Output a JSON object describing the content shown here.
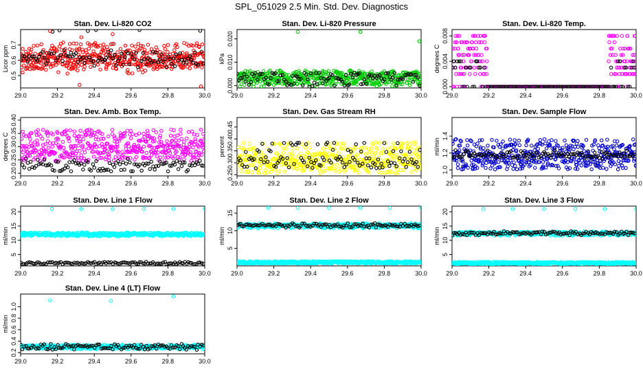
{
  "title": "SPL_051029  2.5 Min. Std. Dev. Diagnostics",
  "chart_data": [
    {
      "type": "scatter",
      "title": "Stan. Dev. Li-820 CO2",
      "xlabel": "",
      "ylabel": "Licor ppm",
      "xlim": [
        29.0,
        30.0
      ],
      "ylim": [
        0.42,
        0.8
      ],
      "xticks": [
        "29.0",
        "29.2",
        "29.4",
        "29.6",
        "29.8",
        "30.0"
      ],
      "yticks": [
        "0.5",
        "0.6",
        "0.7"
      ],
      "color": "#ff0000",
      "series": [
        {
          "color": "#ff0000",
          "values": [
            0.58,
            0.62,
            0.66,
            0.55,
            0.7,
            0.6,
            0.63,
            0.52,
            0.67,
            0.59,
            0.61,
            0.57,
            0.64,
            0.68,
            0.56,
            0.62,
            0.6,
            0.65,
            0.54,
            0.71,
            0.59,
            0.63,
            0.58,
            0.66,
            0.61,
            0.57,
            0.69,
            0.55,
            0.62,
            0.6,
            0.64,
            0.58,
            0.67,
            0.61,
            0.56,
            0.63,
            0.59,
            0.7,
            0.57,
            0.62
          ]
        },
        {
          "color": "#000000",
          "values": [
            0.6,
            0.64,
            0.57,
            0.79,
            0.62,
            0.59,
            0.66,
            0.58,
            0.63,
            0.61,
            0.65,
            0.56,
            0.62,
            0.6
          ]
        }
      ],
      "outliers": [
        {
          "x": 29.16,
          "y": 0.79
        },
        {
          "x": 29.33,
          "y": 0.75
        },
        {
          "x": 29.5,
          "y": 0.77
        },
        {
          "x": 29.98,
          "y": 0.43
        },
        {
          "x": 29.32,
          "y": 0.44
        }
      ]
    },
    {
      "type": "scatter",
      "title": "Stan. Dev. Li-820 Pressure",
      "xlabel": "",
      "ylabel": "kPa",
      "xlim": [
        29.0,
        30.0
      ],
      "ylim": [
        -0.001,
        0.024
      ],
      "xticks": [
        "29.0",
        "29.2",
        "29.4",
        "29.6",
        "29.8",
        "30.0"
      ],
      "yticks": [
        "0.000",
        "0.010",
        "0.020"
      ],
      "color": "#00cc00",
      "series": [
        {
          "color": "#00cc00",
          "values": [
            0.001,
            0.003,
            0.005,
            0.002,
            0.004,
            0.006,
            0.001,
            0.003,
            0.005,
            0.002,
            0.004,
            0.0,
            0.006,
            0.003,
            0.001,
            0.005
          ]
        },
        {
          "color": "#000000",
          "values": [
            0.001,
            0.003,
            0.005,
            0.002,
            0.004,
            0.0,
            0.003,
            0.005
          ]
        }
      ],
      "outliers": [
        {
          "x": 29.33,
          "y": 0.023
        },
        {
          "x": 29.67,
          "y": 0.023
        },
        {
          "x": 29.99,
          "y": 0.019
        }
      ]
    },
    {
      "type": "scatter",
      "title": "Stan. Dev. Li-820 Temp.",
      "xlabel": "",
      "ylabel": "degrees C",
      "xlim": [
        29.0,
        30.0
      ],
      "ylim": [
        -0.0002,
        0.009
      ],
      "xticks": [
        "29.0",
        "29.2",
        "29.4",
        "29.6",
        "29.8",
        "30.0"
      ],
      "yticks": [
        "0.000",
        "0.004",
        "0.008"
      ],
      "color": "#ff00ff",
      "series": [
        {
          "color": "#ff00ff",
          "values": [
            0.0,
            0.002,
            0.003,
            0.004,
            0.005,
            0.006,
            0.007,
            0.008
          ]
        },
        {
          "color": "#000000",
          "values": [
            0.0,
            0.003,
            0.004
          ]
        }
      ]
    },
    {
      "type": "scatter",
      "title": "Stan. Dev. Amb. Box Temp.",
      "xlabel": "",
      "ylabel": "degrees C",
      "xlim": [
        29.0,
        30.0
      ],
      "ylim": [
        0.19,
        0.41
      ],
      "xticks": [
        "29.0",
        "29.2",
        "29.4",
        "29.6",
        "29.8",
        "30.0"
      ],
      "yticks": [
        "0.20",
        "0.25",
        "0.30",
        "0.35",
        "0.40"
      ],
      "color": "#ff00ff",
      "series": [
        {
          "color": "#ff00ff",
          "values": [
            0.26,
            0.3,
            0.34,
            0.28,
            0.32,
            0.36,
            0.27,
            0.31,
            0.29,
            0.33,
            0.25,
            0.35,
            0.3,
            0.28
          ]
        },
        {
          "color": "#000000",
          "values": [
            0.21,
            0.23,
            0.24,
            0.22,
            0.25,
            0.23,
            0.21,
            0.24
          ]
        }
      ]
    },
    {
      "type": "scatter",
      "title": "Stan. Dev. Gas Stream RH",
      "xlabel": "",
      "ylabel": "percent",
      "xlim": [
        29.0,
        30.0
      ],
      "ylim": [
        0.245,
        0.49
      ],
      "xticks": [
        "29.0",
        "29.2",
        "29.4",
        "29.6",
        "29.8",
        "30.0"
      ],
      "yticks": [
        "0.25",
        "0.30",
        "0.35",
        "0.40",
        "0.45"
      ],
      "color": "#ffff00",
      "series": [
        {
          "color": "#ffff00",
          "values": [
            0.28,
            0.31,
            0.34,
            0.29,
            0.32,
            0.36,
            0.27,
            0.3,
            0.33,
            0.38,
            0.26,
            0.31,
            0.29
          ]
        },
        {
          "color": "#000000",
          "values": [
            0.28,
            0.3,
            0.32,
            0.35,
            0.29,
            0.31,
            0.38
          ]
        }
      ]
    },
    {
      "type": "scatter",
      "title": "Stan. Dev. Sample Flow",
      "xlabel": "",
      "ylabel": "ml/min",
      "xlim": [
        29.0,
        30.0
      ],
      "ylim": [
        0.93,
        1.62
      ],
      "xticks": [
        "29.0",
        "29.2",
        "29.4",
        "29.6",
        "29.8",
        "30.0"
      ],
      "yticks": [
        "1.0",
        "1.2",
        "1.4"
      ],
      "color": "#0000cc",
      "series": [
        {
          "color": "#0000cc",
          "values": [
            1.1,
            1.15,
            1.2,
            1.25,
            1.05,
            1.3,
            1.18,
            1.12,
            1.22,
            1.08,
            1.28,
            1.16,
            1.35,
            1.02
          ]
        },
        {
          "color": "#000000",
          "values": [
            1.15,
            1.18,
            1.2,
            1.22,
            1.17
          ]
        }
      ]
    },
    {
      "type": "scatter",
      "title": "Stan. Dev. Line 1 Flow",
      "xlabel": "",
      "ylabel": "ml/min",
      "xlim": [
        29.0,
        30.0
      ],
      "ylim": [
        1,
        22
      ],
      "xticks": [
        "29.0",
        "29.2",
        "29.4",
        "29.6",
        "29.8",
        "30.0"
      ],
      "yticks": [
        "5",
        "10",
        "15",
        "20"
      ],
      "color": "#00ffff",
      "series": [
        {
          "color": "#00ffff",
          "values": [
            12,
            12.3,
            11.8,
            12.1,
            12.4,
            11.9
          ]
        },
        {
          "color": "#000000",
          "values": [
            2,
            2,
            2
          ]
        }
      ],
      "outliers": [
        {
          "x": 29.17,
          "y": 21
        },
        {
          "x": 29.33,
          "y": 21
        },
        {
          "x": 29.5,
          "y": 21
        },
        {
          "x": 29.67,
          "y": 21
        },
        {
          "x": 29.83,
          "y": 21
        },
        {
          "x": 30.0,
          "y": 21
        }
      ]
    },
    {
      "type": "scatter",
      "title": "Stan. Dev. Line 2 Flow",
      "xlabel": "",
      "ylabel": "ml/min",
      "xlim": [
        29.0,
        30.0
      ],
      "ylim": [
        0,
        17
      ],
      "xticks": [
        "29.0",
        "29.2",
        "29.4",
        "29.6",
        "29.8",
        "30.0"
      ],
      "yticks": [
        "5",
        "10",
        "15"
      ],
      "color": "#00ffff",
      "series": [
        {
          "color": "#00ffff",
          "values": [
            11,
            11.3,
            11.6,
            11.8,
            11.5
          ]
        },
        {
          "color": "#000000",
          "values": [
            11.2,
            11.5,
            11.8
          ]
        },
        {
          "color": "#00ffff",
          "values": [
            1,
            1,
            1
          ]
        }
      ],
      "outliers": [
        {
          "x": 29.17,
          "y": 16.5
        },
        {
          "x": 29.33,
          "y": 16.5
        },
        {
          "x": 29.5,
          "y": 16.5
        },
        {
          "x": 29.67,
          "y": 16.5
        },
        {
          "x": 29.83,
          "y": 16.5
        },
        {
          "x": 30.0,
          "y": 16.5
        }
      ]
    },
    {
      "type": "scatter",
      "title": "Stan. Dev. Line 3 Flow",
      "xlabel": "",
      "ylabel": "ml/min",
      "xlim": [
        29.0,
        30.0
      ],
      "ylim": [
        1,
        22
      ],
      "xticks": [
        "29.0",
        "29.2",
        "29.4",
        "29.6",
        "29.8",
        "30.0"
      ],
      "yticks": [
        "5",
        "10",
        "15",
        "20"
      ],
      "color": "#00ffff",
      "series": [
        {
          "color": "#00ffff",
          "values": [
            12,
            12.4,
            12.7,
            12.5
          ]
        },
        {
          "color": "#000000",
          "values": [
            12.2,
            12.6,
            12.8
          ]
        },
        {
          "color": "#00ffff",
          "values": [
            2,
            2,
            2
          ]
        }
      ],
      "outliers": [
        {
          "x": 29.17,
          "y": 21
        },
        {
          "x": 29.33,
          "y": 21
        },
        {
          "x": 29.5,
          "y": 21
        },
        {
          "x": 29.67,
          "y": 21
        },
        {
          "x": 29.83,
          "y": 21
        },
        {
          "x": 30.0,
          "y": 21
        }
      ]
    },
    {
      "type": "scatter",
      "title": "Stan. Dev. Line 4 (LT) Flow",
      "xlabel": "",
      "ylabel": "ml/min",
      "xlim": [
        29.0,
        30.0
      ],
      "ylim": [
        0.18,
        1.22
      ],
      "xticks": [
        "29.0",
        "29.2",
        "29.4",
        "29.6",
        "29.8",
        "30.0"
      ],
      "yticks": [
        "0.2",
        "0.4",
        "0.6",
        "0.8",
        "1.0"
      ],
      "color": "#00ffff",
      "series": [
        {
          "color": "#00ffff",
          "values": [
            0.28,
            0.3,
            0.32,
            0.29,
            0.31
          ]
        },
        {
          "color": "#000000",
          "values": [
            0.27,
            0.3,
            0.33
          ]
        }
      ],
      "outliers": [
        {
          "x": 29.16,
          "y": 1.11
        },
        {
          "x": 29.49,
          "y": 1.1
        },
        {
          "x": 29.83,
          "y": 1.18
        }
      ]
    }
  ]
}
